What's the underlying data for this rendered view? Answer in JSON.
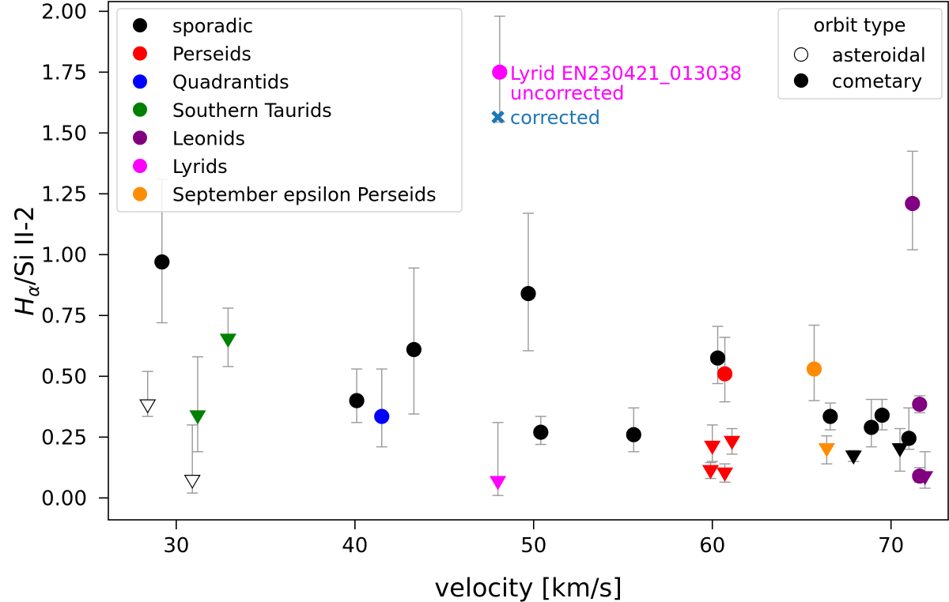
{
  "chart_data": {
    "type": "scatter",
    "xlabel": "velocity [km/s]",
    "ylabel_main": "H",
    "ylabel_sub": "α",
    "ylabel_rest": "/Si II-2",
    "xlim": [
      26.2,
      73.2
    ],
    "ylim": [
      -0.09,
      2.04
    ],
    "x_ticks": [
      30,
      40,
      50,
      60,
      70
    ],
    "y_ticks": [
      0.0,
      0.25,
      0.5,
      0.75,
      1.0,
      1.25,
      1.5,
      1.75,
      2.0
    ],
    "x_tick_labels": [
      "30",
      "40",
      "50",
      "60",
      "70"
    ],
    "y_tick_labels": [
      "0.00",
      "0.25",
      "0.50",
      "0.75",
      "1.00",
      "1.25",
      "1.50",
      "1.75",
      "2.00"
    ],
    "grid": false,
    "legend_position": "top-left",
    "series": [
      {
        "name": "sporadic",
        "color": "#000000",
        "points": [
          {
            "x": 29.2,
            "y": 0.97,
            "err_lo": 0.72,
            "err_hi": 1.31,
            "marker": "circle",
            "filled": true
          },
          {
            "x": 28.4,
            "y": 0.38,
            "err_lo": 0.335,
            "err_hi": 0.52,
            "marker": "triangle-down",
            "filled": false
          },
          {
            "x": 30.9,
            "y": 0.07,
            "err_lo": 0.02,
            "err_hi": 0.3,
            "marker": "triangle-down",
            "filled": false
          },
          {
            "x": 40.1,
            "y": 0.4,
            "err_lo": 0.31,
            "err_hi": 0.53,
            "marker": "circle",
            "filled": true
          },
          {
            "x": 43.3,
            "y": 0.61,
            "err_lo": 0.345,
            "err_hi": 0.945,
            "marker": "circle",
            "filled": true
          },
          {
            "x": 49.7,
            "y": 0.84,
            "err_lo": 0.605,
            "err_hi": 1.17,
            "marker": "circle",
            "filled": true
          },
          {
            "x": 50.4,
            "y": 0.27,
            "err_lo": 0.22,
            "err_hi": 0.335,
            "marker": "circle",
            "filled": true
          },
          {
            "x": 55.6,
            "y": 0.26,
            "err_lo": 0.19,
            "err_hi": 0.37,
            "marker": "circle",
            "filled": true
          },
          {
            "x": 60.3,
            "y": 0.575,
            "err_lo": 0.47,
            "err_hi": 0.705,
            "marker": "circle",
            "filled": true
          },
          {
            "x": 66.6,
            "y": 0.335,
            "err_lo": 0.28,
            "err_hi": 0.39,
            "marker": "circle",
            "filled": true
          },
          {
            "x": 67.9,
            "y": 0.17,
            "err_lo": 0.15,
            "err_hi": 0.195,
            "marker": "triangle-down",
            "filled": true
          },
          {
            "x": 68.9,
            "y": 0.29,
            "err_lo": 0.21,
            "err_hi": 0.405,
            "marker": "circle",
            "filled": true
          },
          {
            "x": 69.5,
            "y": 0.34,
            "err_lo": 0.28,
            "err_hi": 0.405,
            "marker": "circle",
            "filled": true
          },
          {
            "x": 70.5,
            "y": 0.2,
            "err_lo": 0.11,
            "err_hi": 0.285,
            "marker": "triangle-down",
            "filled": true
          },
          {
            "x": 71.0,
            "y": 0.245,
            "err_lo": 0.2,
            "err_hi": 0.37,
            "marker": "circle",
            "filled": true
          }
        ]
      },
      {
        "name": "Perseids",
        "color": "#ff0000",
        "points": [
          {
            "x": 60.7,
            "y": 0.51,
            "err_lo": 0.395,
            "err_hi": 0.66,
            "marker": "circle",
            "filled": true
          },
          {
            "x": 60.0,
            "y": 0.21,
            "err_lo": 0.15,
            "err_hi": 0.3,
            "marker": "triangle-down",
            "filled": true
          },
          {
            "x": 61.1,
            "y": 0.23,
            "err_lo": 0.18,
            "err_hi": 0.285,
            "marker": "triangle-down",
            "filled": true
          },
          {
            "x": 59.9,
            "y": 0.11,
            "err_lo": 0.08,
            "err_hi": 0.145,
            "marker": "triangle-down",
            "filled": true
          },
          {
            "x": 60.7,
            "y": 0.1,
            "err_lo": 0.065,
            "err_hi": 0.14,
            "marker": "triangle-down",
            "filled": true
          }
        ]
      },
      {
        "name": "Quadrantids",
        "color": "#0000ff",
        "points": [
          {
            "x": 41.5,
            "y": 0.335,
            "err_lo": 0.21,
            "err_hi": 0.53,
            "marker": "circle",
            "filled": true
          }
        ]
      },
      {
        "name": "Southern Taurids",
        "color": "#008000",
        "points": [
          {
            "x": 31.2,
            "y": 0.335,
            "err_lo": 0.19,
            "err_hi": 0.58,
            "marker": "triangle-down",
            "filled": true
          },
          {
            "x": 32.9,
            "y": 0.65,
            "err_lo": 0.54,
            "err_hi": 0.78,
            "marker": "triangle-down",
            "filled": true
          }
        ]
      },
      {
        "name": "Leonids",
        "color": "#800080",
        "points": [
          {
            "x": 71.2,
            "y": 1.21,
            "err_lo": 1.02,
            "err_hi": 1.425,
            "marker": "circle",
            "filled": true
          },
          {
            "x": 71.6,
            "y": 0.385,
            "err_lo": 0.35,
            "err_hi": 0.42,
            "marker": "circle",
            "filled": true
          },
          {
            "x": 71.6,
            "y": 0.09,
            "err_lo": 0.065,
            "err_hi": 0.125,
            "marker": "circle",
            "filled": true
          },
          {
            "x": 71.9,
            "y": 0.085,
            "err_lo": 0.04,
            "err_hi": 0.19,
            "marker": "triangle-down",
            "filled": true
          }
        ]
      },
      {
        "name": "Lyrids",
        "color": "#ff00ff",
        "points": [
          {
            "x": 48.0,
            "y": 0.065,
            "err_lo": 0.01,
            "err_hi": 0.31,
            "marker": "triangle-down",
            "filled": true
          },
          {
            "x": 48.1,
            "y": 1.75,
            "err_lo": 1.545,
            "err_hi": 1.98,
            "marker": "circle",
            "filled": true
          }
        ]
      },
      {
        "name": "September epsilon Perseids",
        "color": "#ff8c00",
        "points": [
          {
            "x": 65.7,
            "y": 0.53,
            "err_lo": 0.4,
            "err_hi": 0.71,
            "marker": "circle",
            "filled": true
          },
          {
            "x": 66.4,
            "y": 0.2,
            "err_lo": 0.14,
            "err_hi": 0.255,
            "marker": "triangle-down",
            "filled": true
          }
        ]
      }
    ],
    "corrected_point": {
      "x": 48.0,
      "y": 1.565,
      "color": "#1f77b4",
      "marker": "x"
    },
    "annotations": {
      "line1": "Lyrid EN230421_013038",
      "line2": "uncorrected",
      "corrected": "corrected",
      "line_color": "#ff00ff",
      "corrected_color": "#1f77b4"
    },
    "legend_orbit": {
      "title": "orbit type",
      "items": [
        {
          "label": "asteroidal",
          "filled": false
        },
        {
          "label": "cometary",
          "filled": true
        }
      ]
    }
  }
}
